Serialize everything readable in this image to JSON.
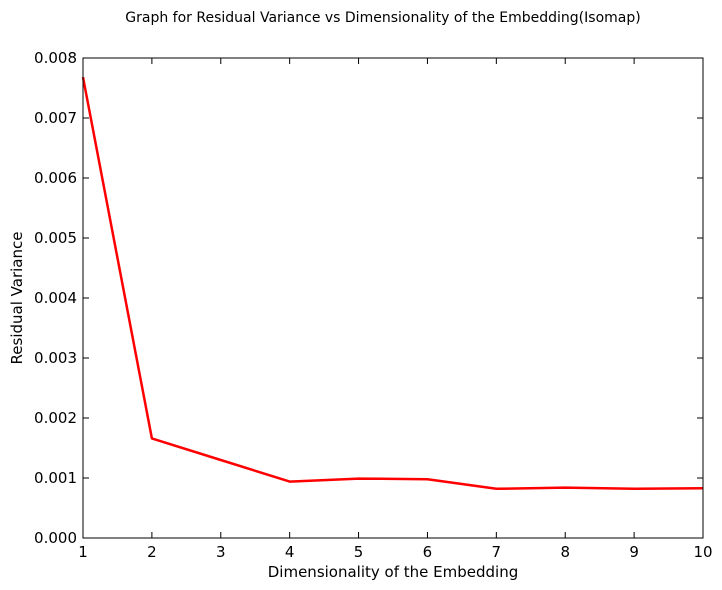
{
  "chart_data": {
    "type": "line",
    "title": "Graph for Residual Variance vs Dimensionality of the Embedding(Isomap)",
    "xlabel": "Dimensionality of the Embedding",
    "ylabel": "Residual Variance",
    "xlim": [
      1,
      10
    ],
    "ylim": [
      0,
      0.008
    ],
    "x_ticks": [
      "1",
      "2",
      "3",
      "4",
      "5",
      "6",
      "7",
      "8",
      "9",
      "10"
    ],
    "y_ticks": [
      "0.000",
      "0.001",
      "0.002",
      "0.003",
      "0.004",
      "0.005",
      "0.006",
      "0.007",
      "0.008"
    ],
    "grid": false,
    "series": [
      {
        "color": "#ff0000",
        "x": [
          1,
          2,
          3,
          4,
          5,
          6,
          7,
          8,
          9,
          10
        ],
        "y": [
          0.00768,
          0.00166,
          0.0013,
          0.00094,
          0.00099,
          0.00098,
          0.00082,
          0.00084,
          0.00082,
          0.00083
        ]
      }
    ]
  }
}
